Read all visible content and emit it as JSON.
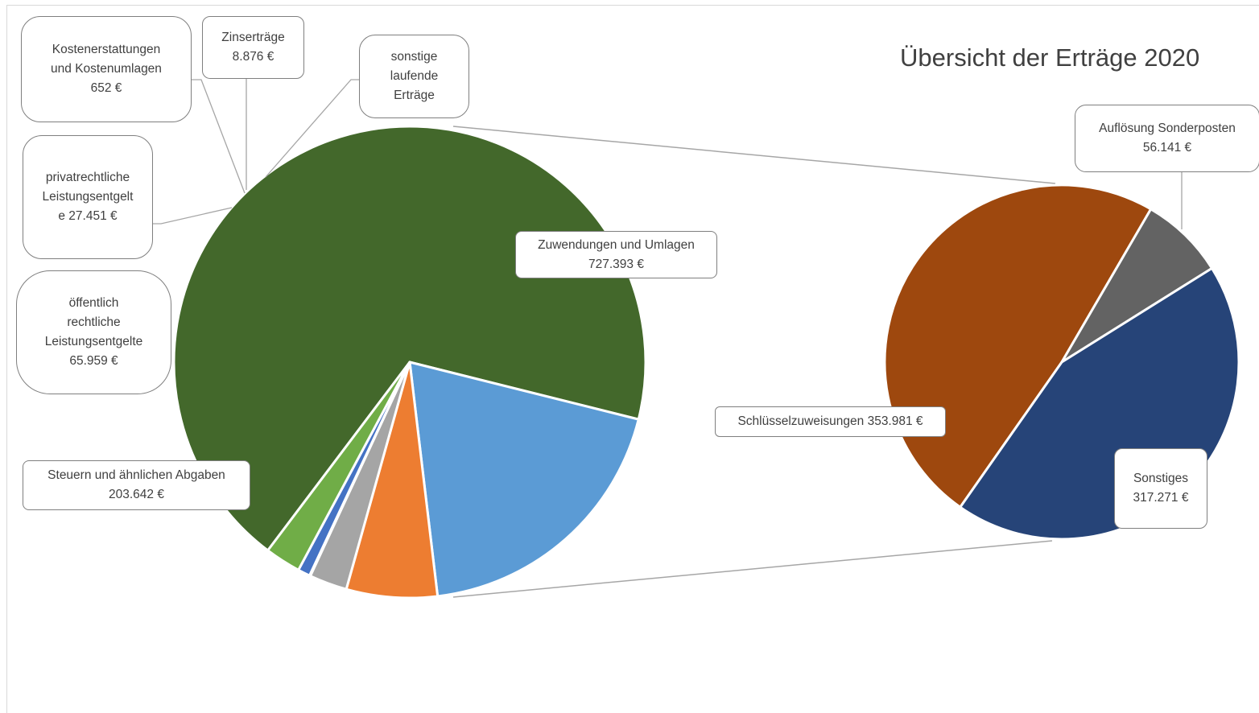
{
  "chart_title": "Übersicht der Erträge 2020",
  "chart_data": {
    "type": "pie",
    "subtype": "pie-of-pie",
    "title": "Übersicht der Erträge 2020",
    "currency": "€",
    "main_pie": {
      "slices": [
        {
          "key": "zuwendungen",
          "label_lines": [
            "Zuwendungen und Umlagen",
            "727.393 €"
          ],
          "value": 727393,
          "color": "#43682B"
        },
        {
          "key": "steuern",
          "label_lines": [
            "Steuern und ähnlichen Abgaben",
            "203.642 €"
          ],
          "value": 203642,
          "color": "#5B9BD5"
        },
        {
          "key": "oeffentlich",
          "label_lines": [
            "öffentlich",
            "rechtliche",
            "Leistungsentgelte",
            "65.959 €"
          ],
          "value": 65959,
          "color": "#ED7D31"
        },
        {
          "key": "privat",
          "label_lines": [
            "privatrechtliche",
            "Leistungsentgelt",
            "e 27.451 €"
          ],
          "value": 27451,
          "color": "#A5A5A5"
        },
        {
          "key": "kosten",
          "label_lines": [
            "Kostenerstattungen",
            "und Kostenumlagen",
            "652 €"
          ],
          "value": 652,
          "color": "#4472C4"
        },
        {
          "key": "zins",
          "label_lines": [
            "Zinserträge",
            "8.876 €"
          ],
          "value": 8876,
          "color": "#4472C4"
        },
        {
          "key": "sonstige",
          "label_lines": [
            "sonstige",
            "laufende",
            "Erträge"
          ],
          "value": 26000,
          "color": "#70AD47"
        }
      ]
    },
    "secondary_pie": {
      "breakout_of": "Zuwendungen und Umlagen",
      "slices": [
        {
          "key": "schluessel",
          "label_lines": [
            "Schlüsselzuweisungen 353.981 €"
          ],
          "value": 353981,
          "color": "#9E480E"
        },
        {
          "key": "aufloesung",
          "label_lines": [
            "Auflösung Sonderposten",
            "56.141 €"
          ],
          "value": 56141,
          "color": "#636363"
        },
        {
          "key": "sonstiges",
          "label_lines": [
            "Sonstiges",
            "317.271 €"
          ],
          "value": 317271,
          "color": "#264478"
        }
      ]
    }
  }
}
